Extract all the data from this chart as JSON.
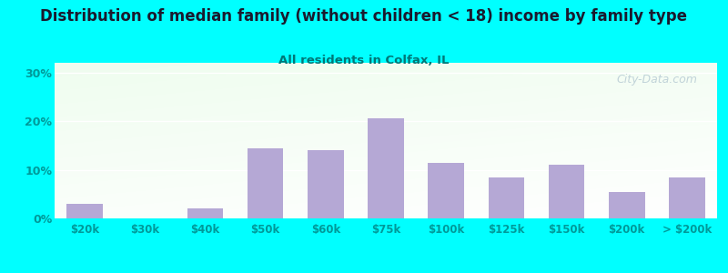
{
  "title": "Distribution of median family (without children < 18) income by family type",
  "subtitle": "All residents in Colfax, IL",
  "categories": [
    "$20k",
    "$30k",
    "$40k",
    "$50k",
    "$60k",
    "$75k",
    "$100k",
    "$125k",
    "$150k",
    "$200k",
    "> $200k"
  ],
  "values": [
    3.0,
    0.0,
    2.0,
    14.5,
    14.0,
    20.5,
    11.5,
    8.5,
    11.0,
    5.5,
    8.5
  ],
  "bar_color": "#b5a8d5",
  "bg_color": "#00ffff",
  "plot_grad_top_left": "#c8eec8",
  "plot_grad_bottom_right": "#f0fdf0",
  "title_color": "#1a1a2e",
  "subtitle_color": "#007777",
  "tick_color": "#009999",
  "grid_color": "#ffffff",
  "ylim": [
    0,
    32
  ],
  "yticks": [
    0,
    10,
    20,
    30
  ],
  "watermark": "City-Data.com",
  "title_fontsize": 12,
  "subtitle_fontsize": 9.5
}
